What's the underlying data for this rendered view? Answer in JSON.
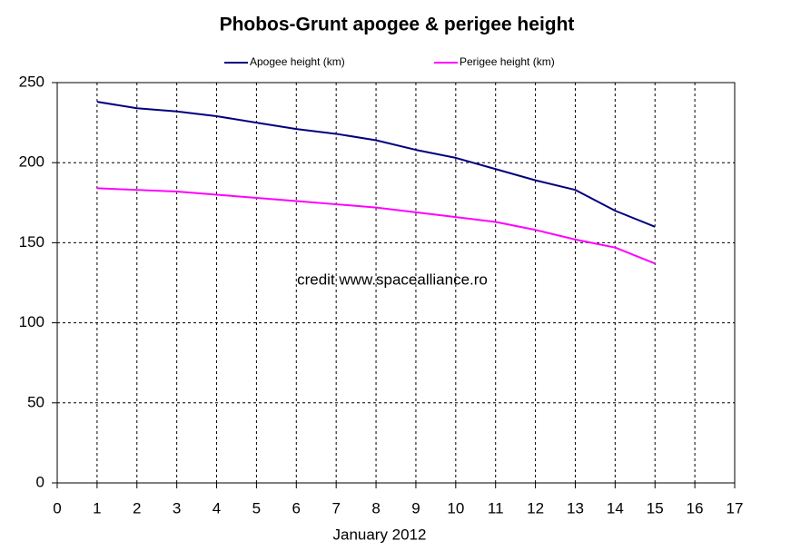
{
  "chart_data": {
    "type": "line",
    "title": "Phobos-Grunt apogee & perigee height",
    "x_label": "January 2012",
    "annotation": "credit www.spacealliance.ro",
    "x": [
      1,
      2,
      3,
      4,
      5,
      6,
      7,
      8,
      9,
      10,
      11,
      12,
      13,
      14,
      15
    ],
    "series": [
      {
        "name": "Apogee height (km)",
        "color": "#000080",
        "values": [
          238,
          234,
          232,
          229,
          225,
          221,
          218,
          214,
          208,
          203,
          196,
          189,
          183,
          170,
          160
        ]
      },
      {
        "name": "Perigee height (km)",
        "color": "#ff00ff",
        "values": [
          184,
          183,
          182,
          180,
          178,
          176,
          174,
          172,
          169,
          166,
          163,
          158,
          152,
          147,
          137
        ]
      }
    ],
    "xlim": [
      0,
      17
    ],
    "xticks": [
      0,
      1,
      2,
      3,
      4,
      5,
      6,
      7,
      8,
      9,
      10,
      11,
      12,
      13,
      14,
      15,
      16,
      17
    ],
    "ylim": [
      0,
      250
    ],
    "yticks": [
      0,
      50,
      100,
      150,
      200,
      250
    ],
    "grid": true,
    "legend": "top"
  }
}
